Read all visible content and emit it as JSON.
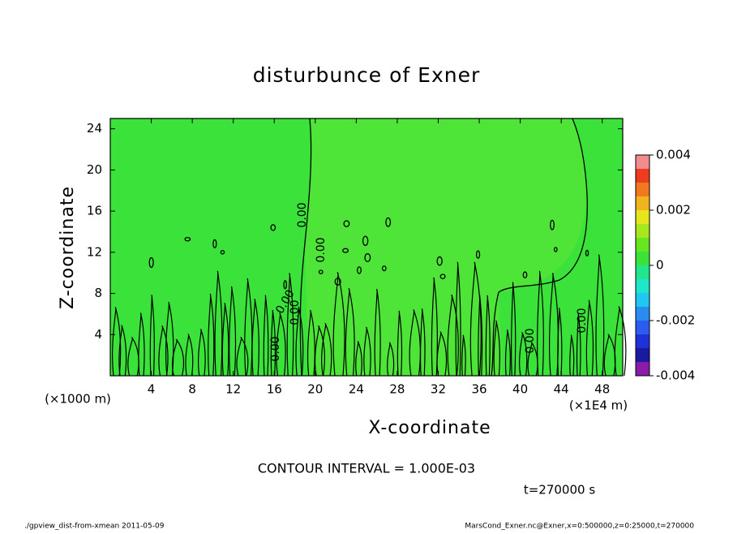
{
  "chart_data": {
    "type": "contour",
    "title": "disturbunce of Exner",
    "x_label": "X-coordinate",
    "y_label": "Z-coordinate",
    "x_unit": "(×1E4 m)",
    "y_unit": "(×1000 m)",
    "xlim": [
      0,
      50
    ],
    "xticks": [
      4,
      8,
      12,
      16,
      20,
      24,
      28,
      32,
      36,
      40,
      44,
      48
    ],
    "ylim": [
      0,
      25
    ],
    "yticks": [
      4,
      8,
      12,
      16,
      20,
      24
    ],
    "contour_labels": [
      "0.00",
      "0.00",
      "0.00",
      "0.00",
      "0.00",
      "0.00",
      "0.00"
    ],
    "colorbar": {
      "lim": [
        -0.004,
        0.004
      ],
      "ticks": [
        -0.004,
        -0.002,
        0,
        0.002,
        0.004
      ],
      "levels": [
        -0.004,
        -0.0035,
        -0.003,
        -0.0025,
        -0.002,
        -0.0015,
        -0.001,
        -0.0005,
        0,
        0.0005,
        0.001,
        0.0015,
        0.002,
        0.0025,
        0.003,
        0.0035,
        0.004
      ],
      "colors": [
        "#8a1aa8",
        "#1a1aa0",
        "#1e32d8",
        "#2a5cf0",
        "#2a8cf0",
        "#1ec8f0",
        "#1ee6c8",
        "#22e68c",
        "#3ae23a",
        "#66e61e",
        "#a8e61e",
        "#e6e61e",
        "#f0b41e",
        "#f0781e",
        "#f03c1e",
        "#f08c8c"
      ]
    },
    "contour_interval": "CONTOUR INTERVAL = 1.000E-03",
    "time_label": "t=270000 s",
    "footer_left": "./gpview_dist-from-xmean  2011-05-09",
    "footer_right": "MarsCond_Exner.nc@Exner,x=0:500000,z=0:25000,t=270000"
  }
}
